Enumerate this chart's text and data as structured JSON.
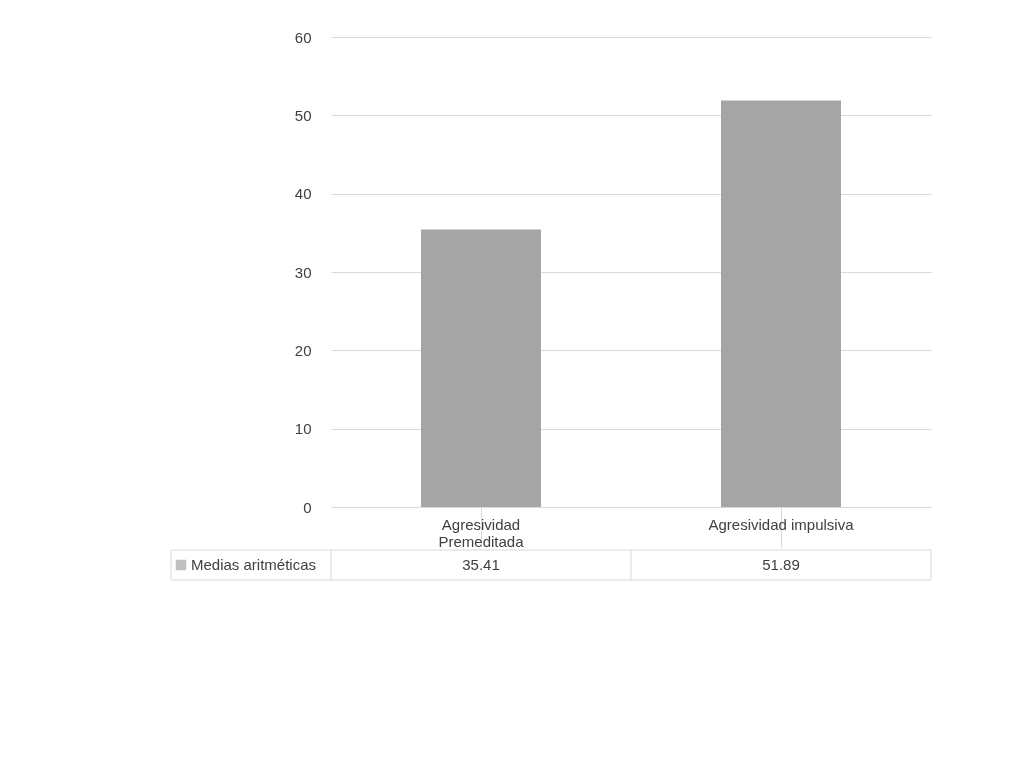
{
  "chart_data": {
    "type": "bar",
    "categories": [
      "Agresividad\nPremeditada",
      "Agresividad impulsiva"
    ],
    "series": [
      {
        "name": "Medias aritméticas",
        "color": "#a5a5a5",
        "values": [
          35.41,
          51.89
        ]
      }
    ],
    "ylim": [
      0,
      60
    ],
    "yticks": [
      0,
      10,
      20,
      30,
      40,
      50,
      60
    ],
    "grid": "y",
    "legend": "bottom",
    "data_labels": true
  }
}
